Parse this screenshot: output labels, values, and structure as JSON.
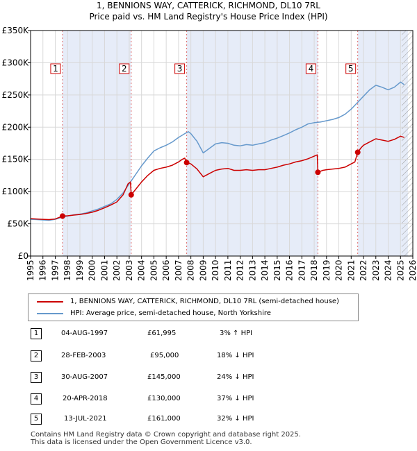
{
  "title": {
    "line1": "1, BENNIONS WAY, CATTERICK, RICHMOND, DL10 7RL",
    "line2": "Price paid vs. HM Land Registry's House Price Index (HPI)"
  },
  "chart_data": {
    "type": "line",
    "xlim": [
      1995,
      2026
    ],
    "ylim": [
      0,
      350000
    ],
    "x_ticks": [
      "1995",
      "1996",
      "1997",
      "1998",
      "1999",
      "2000",
      "2001",
      "2002",
      "2003",
      "2004",
      "2005",
      "2006",
      "2007",
      "2008",
      "2009",
      "2010",
      "2011",
      "2012",
      "2013",
      "2014",
      "2015",
      "2016",
      "2017",
      "2018",
      "2019",
      "2020",
      "2021",
      "2022",
      "2023",
      "2024",
      "2025",
      "2026"
    ],
    "y_ticks": [
      {
        "value": 0,
        "label": "£0"
      },
      {
        "value": 50000,
        "label": "£50K"
      },
      {
        "value": 100000,
        "label": "£100K"
      },
      {
        "value": 150000,
        "label": "£150K"
      },
      {
        "value": 200000,
        "label": "£200K"
      },
      {
        "value": 250000,
        "label": "£250K"
      },
      {
        "value": 300000,
        "label": "£300K"
      },
      {
        "value": 350000,
        "label": "£350K"
      }
    ],
    "shaded_periods": [
      [
        1997.59,
        2003.16
      ],
      [
        2007.66,
        2018.3
      ],
      [
        2021.53,
        2025.6
      ]
    ],
    "hatched_region": [
      2025.1,
      2026
    ],
    "series": [
      {
        "name": "1, BENNIONS WAY, CATTERICK, RICHMOND, DL10 7RL (semi-detached house)",
        "color": "#cc0000",
        "points": [
          [
            1995.0,
            58000
          ],
          [
            1995.5,
            57500
          ],
          [
            1996.0,
            57000
          ],
          [
            1996.5,
            56500
          ],
          [
            1997.0,
            57500
          ],
          [
            1997.59,
            61995
          ],
          [
            1998.0,
            62500
          ],
          [
            1998.5,
            63500
          ],
          [
            1999.0,
            64500
          ],
          [
            1999.5,
            66000
          ],
          [
            2000.0,
            68000
          ],
          [
            2000.5,
            71000
          ],
          [
            2001.0,
            75000
          ],
          [
            2001.5,
            79000
          ],
          [
            2002.0,
            84000
          ],
          [
            2002.5,
            95000
          ],
          [
            2002.9,
            112000
          ],
          [
            2003.1,
            115000
          ],
          [
            2003.16,
            95000
          ],
          [
            2003.5,
            103000
          ],
          [
            2004.0,
            115000
          ],
          [
            2004.5,
            125000
          ],
          [
            2005.0,
            133000
          ],
          [
            2005.5,
            136000
          ],
          [
            2006.0,
            138000
          ],
          [
            2006.5,
            141000
          ],
          [
            2007.0,
            146000
          ],
          [
            2007.3,
            150000
          ],
          [
            2007.5,
            152000
          ],
          [
            2007.66,
            145000
          ],
          [
            2008.0,
            143000
          ],
          [
            2008.5,
            135000
          ],
          [
            2009.0,
            123000
          ],
          [
            2009.5,
            128000
          ],
          [
            2010.0,
            133000
          ],
          [
            2010.5,
            135000
          ],
          [
            2011.0,
            136000
          ],
          [
            2011.5,
            133000
          ],
          [
            2012.0,
            133000
          ],
          [
            2012.5,
            134000
          ],
          [
            2013.0,
            133000
          ],
          [
            2013.5,
            134000
          ],
          [
            2014.0,
            134000
          ],
          [
            2014.5,
            136000
          ],
          [
            2015.0,
            138000
          ],
          [
            2015.5,
            141000
          ],
          [
            2016.0,
            143000
          ],
          [
            2016.5,
            146000
          ],
          [
            2017.0,
            148000
          ],
          [
            2017.5,
            151000
          ],
          [
            2018.0,
            155000
          ],
          [
            2018.25,
            157000
          ],
          [
            2018.3,
            130000
          ],
          [
            2018.7,
            133000
          ],
          [
            2019.0,
            134000
          ],
          [
            2019.5,
            135000
          ],
          [
            2020.0,
            136000
          ],
          [
            2020.5,
            138000
          ],
          [
            2021.0,
            143000
          ],
          [
            2021.3,
            146000
          ],
          [
            2021.53,
            161000
          ],
          [
            2021.8,
            168000
          ],
          [
            2022.0,
            172000
          ],
          [
            2022.5,
            177000
          ],
          [
            2023.0,
            182000
          ],
          [
            2023.5,
            180000
          ],
          [
            2024.0,
            178000
          ],
          [
            2024.5,
            181000
          ],
          [
            2025.0,
            186000
          ],
          [
            2025.3,
            184000
          ]
        ]
      },
      {
        "name": "HPI: Average price, semi-detached house, North Yorkshire",
        "color": "#6699cc",
        "points": [
          [
            1995.0,
            57000
          ],
          [
            1995.5,
            56500
          ],
          [
            1996.0,
            56000
          ],
          [
            1996.5,
            55500
          ],
          [
            1997.0,
            57000
          ],
          [
            1997.5,
            60000
          ],
          [
            1998.0,
            62000
          ],
          [
            1998.5,
            64000
          ],
          [
            1999.0,
            65000
          ],
          [
            1999.5,
            67000
          ],
          [
            2000.0,
            70000
          ],
          [
            2000.5,
            73000
          ],
          [
            2001.0,
            77000
          ],
          [
            2001.5,
            81000
          ],
          [
            2002.0,
            88000
          ],
          [
            2002.5,
            98000
          ],
          [
            2003.0,
            112000
          ],
          [
            2003.5,
            126000
          ],
          [
            2004.0,
            140000
          ],
          [
            2004.5,
            152000
          ],
          [
            2005.0,
            163000
          ],
          [
            2005.5,
            168000
          ],
          [
            2006.0,
            172000
          ],
          [
            2006.5,
            177000
          ],
          [
            2007.0,
            184000
          ],
          [
            2007.5,
            190000
          ],
          [
            2007.8,
            193000
          ],
          [
            2008.0,
            190000
          ],
          [
            2008.5,
            178000
          ],
          [
            2009.0,
            160000
          ],
          [
            2009.5,
            167000
          ],
          [
            2010.0,
            174000
          ],
          [
            2010.5,
            176000
          ],
          [
            2011.0,
            175000
          ],
          [
            2011.5,
            172000
          ],
          [
            2012.0,
            171000
          ],
          [
            2012.5,
            173000
          ],
          [
            2013.0,
            172000
          ],
          [
            2013.5,
            174000
          ],
          [
            2014.0,
            176000
          ],
          [
            2014.5,
            180000
          ],
          [
            2015.0,
            183000
          ],
          [
            2015.5,
            187000
          ],
          [
            2016.0,
            191000
          ],
          [
            2016.5,
            196000
          ],
          [
            2017.0,
            200000
          ],
          [
            2017.5,
            205000
          ],
          [
            2018.0,
            207000
          ],
          [
            2018.5,
            208000
          ],
          [
            2019.0,
            210000
          ],
          [
            2019.5,
            212000
          ],
          [
            2020.0,
            215000
          ],
          [
            2020.5,
            220000
          ],
          [
            2021.0,
            228000
          ],
          [
            2021.5,
            238000
          ],
          [
            2022.0,
            248000
          ],
          [
            2022.5,
            258000
          ],
          [
            2023.0,
            265000
          ],
          [
            2023.5,
            262000
          ],
          [
            2024.0,
            258000
          ],
          [
            2024.5,
            262000
          ],
          [
            2025.0,
            270000
          ],
          [
            2025.3,
            266000
          ]
        ]
      }
    ],
    "sales": [
      {
        "label": "1",
        "x": 1997.59,
        "price": 61995
      },
      {
        "label": "2",
        "x": 2003.16,
        "price": 95000
      },
      {
        "label": "3",
        "x": 2007.66,
        "price": 145000
      },
      {
        "label": "4",
        "x": 2018.3,
        "price": 130000
      },
      {
        "label": "5",
        "x": 2021.53,
        "price": 161000
      }
    ]
  },
  "legend": {
    "property_label": "1, BENNIONS WAY, CATTERICK, RICHMOND, DL10 7RL (semi-detached house)",
    "hpi_label": "HPI: Average price, semi-detached house, North Yorkshire"
  },
  "transactions": [
    {
      "num": "1",
      "date": "04-AUG-1997",
      "price": "£61,995",
      "hpi": "3% ↑ HPI"
    },
    {
      "num": "2",
      "date": "28-FEB-2003",
      "price": "£95,000",
      "hpi": "18% ↓ HPI"
    },
    {
      "num": "3",
      "date": "30-AUG-2007",
      "price": "£145,000",
      "hpi": "24% ↓ HPI"
    },
    {
      "num": "4",
      "date": "20-APR-2018",
      "price": "£130,000",
      "hpi": "37% ↓ HPI"
    },
    {
      "num": "5",
      "date": "13-JUL-2021",
      "price": "£161,000",
      "hpi": "32% ↓ HPI"
    }
  ],
  "footer": {
    "line1": "Contains HM Land Registry data © Crown copyright and database right 2025.",
    "line2": "This data is licensed under the Open Government Licence v3.0."
  }
}
